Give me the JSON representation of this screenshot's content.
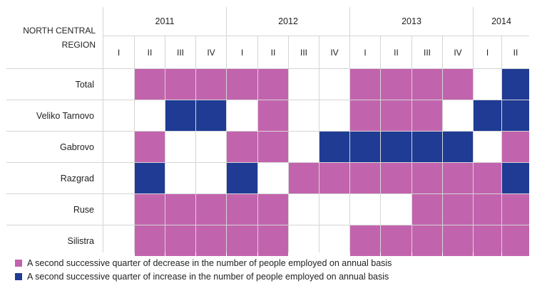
{
  "chart_data": {
    "type": "heatmap",
    "corner_label_line1": "NORTH CENTRAL",
    "corner_label_line2": "REGION",
    "years": [
      {
        "label": "2011",
        "quarters": [
          "I",
          "II",
          "III",
          "IV"
        ]
      },
      {
        "label": "2012",
        "quarters": [
          "I",
          "II",
          "III",
          "IV"
        ]
      },
      {
        "label": "2013",
        "quarters": [
          "I",
          "II",
          "III",
          "IV"
        ]
      },
      {
        "label": "2014",
        "quarters": [
          "I",
          "II"
        ]
      }
    ],
    "rows": [
      {
        "name": "Total",
        "values": [
          0,
          1,
          1,
          1,
          1,
          1,
          0,
          0,
          1,
          1,
          1,
          1,
          0,
          2
        ]
      },
      {
        "name": "Veliko Tarnovo",
        "values": [
          0,
          0,
          2,
          2,
          0,
          1,
          0,
          0,
          1,
          1,
          1,
          0,
          2,
          2
        ]
      },
      {
        "name": "Gabrovo",
        "values": [
          0,
          1,
          0,
          0,
          1,
          1,
          0,
          2,
          2,
          2,
          2,
          2,
          0,
          1
        ]
      },
      {
        "name": "Razgrad",
        "values": [
          0,
          2,
          0,
          0,
          2,
          0,
          1,
          1,
          1,
          1,
          1,
          1,
          1,
          2
        ]
      },
      {
        "name": "Ruse",
        "values": [
          0,
          1,
          1,
          1,
          1,
          1,
          0,
          0,
          0,
          0,
          1,
          1,
          1,
          1
        ]
      },
      {
        "name": "Silistra",
        "values": [
          0,
          1,
          1,
          1,
          1,
          1,
          0,
          0,
          1,
          1,
          1,
          1,
          1,
          1
        ]
      }
    ],
    "value_codes": {
      "0": "none",
      "1": "decrease",
      "2": "increase"
    },
    "colors": {
      "none": "#ffffff",
      "decrease": "#c264ad",
      "increase": "#1f3b93",
      "grid": "#d5d5d5"
    },
    "legend": [
      {
        "key": "decrease",
        "label": "A second successive quarter of decrease in the number of people employed on annual basis"
      },
      {
        "key": "increase",
        "label": "A second successive quarter of increase in the number of people employed on annual basis"
      }
    ]
  }
}
